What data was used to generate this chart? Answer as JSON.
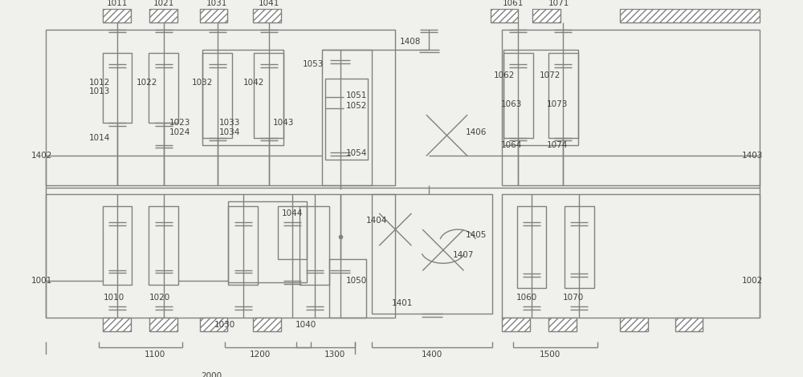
{
  "bg_color": "#f0f0ec",
  "line_color": "#808080",
  "lw": 1.0,
  "fig_width": 10.0,
  "fig_height": 4.7
}
